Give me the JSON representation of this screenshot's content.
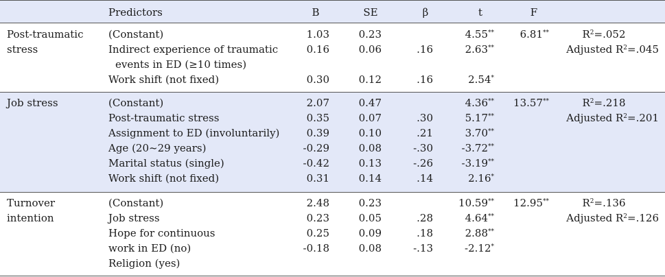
{
  "table": {
    "headers": {
      "predictors": "Predictors",
      "b": "B",
      "se": "SE",
      "beta": "β",
      "t": "t",
      "f": "F"
    },
    "groups": [
      {
        "outcome": [
          "Post-traumatic",
          "stress"
        ],
        "f": "6.81**",
        "r2": "R2=.052",
        "adj_r2": "Adjusted  R2=.045",
        "rows": [
          {
            "predictor": "(Constant)",
            "b": "1.03",
            "se": "0.23",
            "beta": "",
            "t": "4.55**"
          },
          {
            "predictor": "Indirect experience of traumatic",
            "b": "0.16",
            "se": "0.06",
            "beta": ".16",
            "t": "2.63**"
          },
          {
            "predictor": "events in ED (≥10 times)",
            "b": "",
            "se": "",
            "beta": "",
            "t": ""
          },
          {
            "predictor": "Work shift (not fixed)",
            "b": "0.30",
            "se": "0.12",
            "beta": ".16",
            "t": "2.54*"
          }
        ]
      },
      {
        "outcome": [
          "Job stress"
        ],
        "f": "13.57**",
        "r2": "R2=.218",
        "adj_r2": "Adjusted  R2=.201",
        "rows": [
          {
            "predictor": "(Constant)",
            "b": "2.07",
            "se": "0.47",
            "beta": "",
            "t": "4.36**"
          },
          {
            "predictor": "Post-traumatic stress",
            "b": "0.35",
            "se": "0.07",
            "beta": ".30",
            "t": "5.17**"
          },
          {
            "predictor": "Assignment to ED (involuntarily)",
            "b": "0.39",
            "se": "0.10",
            "beta": ".21",
            "t": "3.70**"
          },
          {
            "predictor": "Age (20~29 years)",
            "b": "-0.29",
            "se": "0.08",
            "beta": "-.30",
            "t": "-3.72**"
          },
          {
            "predictor": "Marital status (single)",
            "b": "-0.42",
            "se": "0.13",
            "beta": "-.26",
            "t": "-3.19**"
          },
          {
            "predictor": "Work shift (not fixed)",
            "b": "0.31",
            "se": "0.14",
            "beta": ".14",
            "t": "2.16*"
          }
        ]
      },
      {
        "outcome": [
          "Turnover",
          "intention"
        ],
        "f": "12.95**",
        "r2": "R2=.136",
        "adj_r2": "Adjusted  R2=.126",
        "rows": [
          {
            "predictor": "(Constant)",
            "b": "2.48",
            "se": "0.23",
            "beta": "",
            "t": "10.59**"
          },
          {
            "predictor": "Job stress",
            "b": "0.23",
            "se": "0.05",
            "beta": ".28",
            "t": "4.64**"
          },
          {
            "predictor": "Hope for continuous",
            "b": "0.25",
            "se": "0.09",
            "beta": ".18",
            "t": "2.88**"
          },
          {
            "predictor": "work in ED (no)",
            "b": "-0.18",
            "se": "0.08",
            "beta": "-.13",
            "t": "-2.12*"
          },
          {
            "predictor": "Religion (yes)",
            "b": "",
            "se": "",
            "beta": "",
            "t": ""
          }
        ]
      }
    ]
  }
}
